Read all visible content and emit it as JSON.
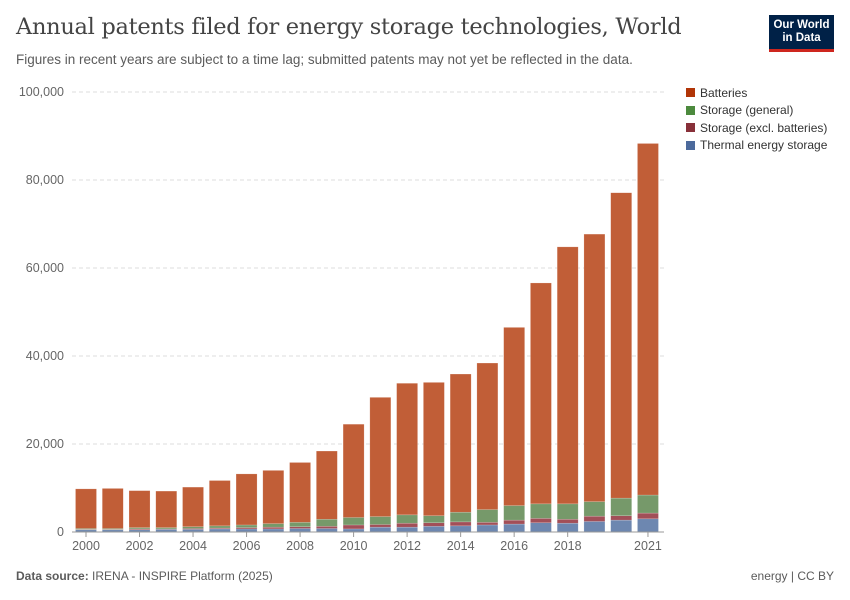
{
  "header": {
    "title": "Annual patents filed for energy storage technologies, World",
    "subtitle": "Figures in recent years are subject to a time lag; submitted patents may not yet be reflected in the data.",
    "logo": "Our World in Data"
  },
  "footer": {
    "source_label": "Data source:",
    "source": "IRENA - INSPIRE Platform (2025)",
    "right": "energy | CC BY"
  },
  "chart_data": {
    "type": "bar",
    "stacked": true,
    "title": "Annual patents filed for energy storage technologies, World",
    "xlabel": "",
    "ylabel": "",
    "ylim": [
      0,
      100000
    ],
    "y_ticks": [
      0,
      20000,
      40000,
      60000,
      80000,
      100000
    ],
    "y_tick_labels": [
      "0",
      "20,000",
      "40,000",
      "60,000",
      "80,000",
      "100,000"
    ],
    "x_tick_labels": [
      "2000",
      "2002",
      "2004",
      "2006",
      "2008",
      "2010",
      "2012",
      "2014",
      "2016",
      "2018",
      "2021"
    ],
    "grid": true,
    "legend_position": "right",
    "categories": [
      2000,
      2001,
      2002,
      2003,
      2004,
      2005,
      2006,
      2007,
      2008,
      2009,
      2010,
      2011,
      2012,
      2013,
      2014,
      2015,
      2016,
      2017,
      2018,
      2019,
      2020,
      2021
    ],
    "series": [
      {
        "name": "Thermal energy storage",
        "color": "#6d87b0",
        "values": [
          500,
          500,
          500,
          600,
          600,
          700,
          700,
          700,
          800,
          800,
          700,
          1100,
          1100,
          1300,
          1400,
          1600,
          1800,
          2100,
          2000,
          2400,
          2700,
          3000
        ]
      },
      {
        "name": "Storage (excl. batteries)",
        "color": "#a24f58",
        "values": [
          100,
          100,
          200,
          100,
          200,
          200,
          300,
          400,
          400,
          500,
          900,
          600,
          900,
          800,
          900,
          600,
          900,
          1000,
          900,
          1200,
          1000,
          1300
        ]
      },
      {
        "name": "Storage (general)",
        "color": "#76996a",
        "values": [
          200,
          200,
          300,
          300,
          400,
          500,
          600,
          800,
          1000,
          1600,
          1700,
          1800,
          1900,
          1600,
          2200,
          2900,
          3300,
          3300,
          3500,
          3300,
          4000,
          4100
        ]
      },
      {
        "name": "Batteries",
        "color": "#c15e37",
        "values": [
          9000,
          9100,
          8400,
          8300,
          9000,
          10300,
          11600,
          12100,
          13600,
          15500,
          21200,
          27100,
          29900,
          30300,
          31400,
          33300,
          40500,
          50200,
          58400,
          60800,
          69400,
          79900
        ]
      }
    ],
    "legend_order": [
      "Batteries",
      "Storage (general)",
      "Storage (excl. batteries)",
      "Thermal energy storage"
    ],
    "legend_colors": [
      "#b13507",
      "#4c8a3d",
      "#883039",
      "#4c6a9c"
    ]
  }
}
